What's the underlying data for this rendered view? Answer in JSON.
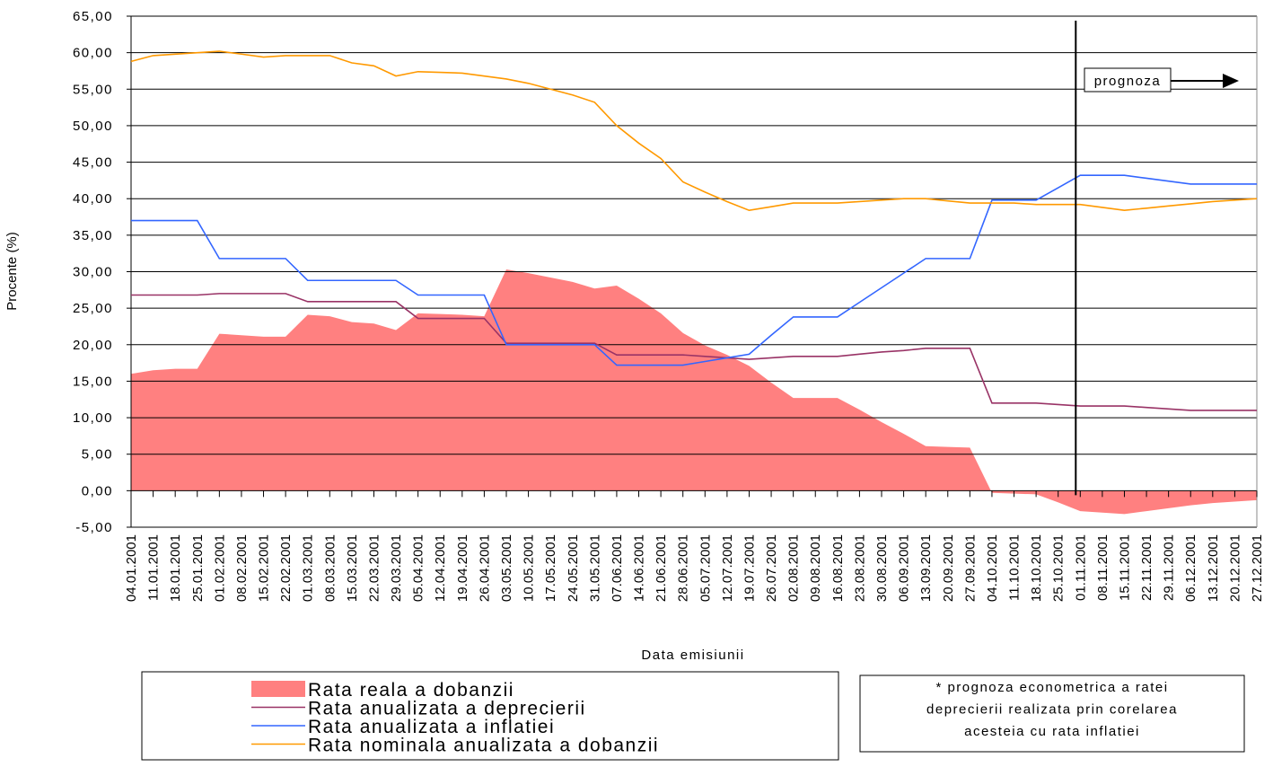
{
  "chart_data": {
    "type": "line",
    "y_label": "Procente (%)",
    "x_label": "Data emisiunii",
    "annotation": "prognoza",
    "note": [
      "* prognoza econometrica a ratei",
      "deprecierii realizata prin corelarea",
      "acesteia cu rata inflatiei"
    ],
    "categories": [
      "04.01.2001",
      "11.01.2001",
      "18.01.2001",
      "25.01.2001",
      "01.02.2001",
      "08.02.2001",
      "15.02.2001",
      "22.02.2001",
      "01.03.2001",
      "08.03.2001",
      "15.03.2001",
      "22.03.2001",
      "29.03.2001",
      "05.04.2001",
      "12.04.2001",
      "19.04.2001",
      "26.04.2001",
      "03.05.2001",
      "10.05.2001",
      "17.05.2001",
      "24.05.2001",
      "31.05.2001",
      "07.06.2001",
      "14.06.2001",
      "21.06.2001",
      "28.06.2001",
      "05.07.2001",
      "12.07.2001",
      "19.07.2001",
      "26.07.2001",
      "02.08.2001",
      "09.08.2001",
      "16.08.2001",
      "23.08.2001",
      "30.08.2001",
      "06.09.2001",
      "13.09.2001",
      "20.09.2001",
      "27.09.2001",
      "04.10.2001",
      "11.10.2001",
      "18.10.2001",
      "25.10.2001",
      "01.11.2001",
      "08.11.2001",
      "15.11.2001",
      "22.11.2001",
      "29.11.2001",
      "06.12.2001",
      "13.12.2001",
      "20.12.2001",
      "27.12.2001"
    ],
    "series": [
      {
        "name": "Rata reala a dobanzii",
        "type": "area",
        "color": "#ff8080",
        "values": [
          16.0,
          16.5,
          16.7,
          16.7,
          21.5,
          21.3,
          21.1,
          21.1,
          24.1,
          23.9,
          23.1,
          22.9,
          22.0,
          24.3,
          24.2,
          24.1,
          23.9,
          30.3,
          29.8,
          29.2,
          28.6,
          27.7,
          28.1,
          26.3,
          24.3,
          21.6,
          19.9,
          18.6,
          17.1,
          14.8,
          12.7,
          12.7,
          12.7,
          11.1,
          9.4,
          7.8,
          6.1,
          6.0,
          5.9,
          -0.3,
          -0.4,
          -0.5,
          -1.6,
          -2.8,
          -3.0,
          -3.2,
          -2.8,
          -2.4,
          -2.0,
          -1.7,
          -1.5,
          -1.3
        ]
      },
      {
        "name": "Rata anualizata a deprecierii",
        "type": "line",
        "color": "#993366",
        "values": [
          26.8,
          26.8,
          26.8,
          26.8,
          27.0,
          27.0,
          27.0,
          27.0,
          25.9,
          25.9,
          25.9,
          25.9,
          25.9,
          23.6,
          23.6,
          23.6,
          23.6,
          20.2,
          20.2,
          20.2,
          20.2,
          20.2,
          18.6,
          18.6,
          18.6,
          18.6,
          18.4,
          18.2,
          18.0,
          18.2,
          18.4,
          18.4,
          18.4,
          18.7,
          19.0,
          19.2,
          19.5,
          19.5,
          19.5,
          12.0,
          12.0,
          12.0,
          11.8,
          11.6,
          11.6,
          11.6,
          11.4,
          11.2,
          11.0,
          11.0,
          11.0,
          11.0
        ]
      },
      {
        "name": "Rata anualizata a inflatiei",
        "type": "line",
        "color": "#3366ff",
        "values": [
          37.0,
          37.0,
          37.0,
          37.0,
          31.8,
          31.8,
          31.8,
          31.8,
          28.8,
          28.8,
          28.8,
          28.8,
          28.8,
          26.8,
          26.8,
          26.8,
          26.8,
          20.0,
          20.0,
          20.0,
          20.0,
          20.0,
          17.2,
          17.2,
          17.2,
          17.2,
          17.7,
          18.2,
          18.7,
          21.3,
          23.8,
          23.8,
          23.8,
          25.8,
          27.8,
          29.8,
          31.8,
          31.8,
          31.8,
          39.8,
          39.8,
          39.8,
          41.5,
          43.2,
          43.2,
          43.2,
          42.8,
          42.4,
          42.0,
          42.0,
          42.0,
          42.0
        ]
      },
      {
        "name": "Rata nominala anualizata a dobanzii",
        "type": "line",
        "color": "#ff9900",
        "values": [
          58.8,
          59.6,
          59.8,
          60.0,
          60.2,
          59.8,
          59.4,
          59.6,
          59.6,
          59.6,
          58.6,
          58.2,
          56.8,
          57.4,
          57.3,
          57.2,
          56.8,
          56.4,
          55.8,
          55.0,
          54.2,
          53.2,
          50.0,
          47.6,
          45.5,
          42.3,
          40.9,
          39.6,
          38.4,
          38.9,
          39.4,
          39.4,
          39.4,
          39.6,
          39.8,
          40.0,
          40.0,
          39.7,
          39.4,
          39.4,
          39.4,
          39.2,
          39.2,
          39.2,
          38.8,
          38.4,
          38.7,
          39.0,
          39.3,
          39.6,
          39.8,
          40.0
        ]
      }
    ],
    "ylim": [
      -5,
      65
    ],
    "yticks": [
      {
        "value": -5,
        "label": "-5,00"
      },
      {
        "value": 0,
        "label": "0,00"
      },
      {
        "value": 5,
        "label": "5,00"
      },
      {
        "value": 10,
        "label": "10,00"
      },
      {
        "value": 15,
        "label": "15,00"
      },
      {
        "value": 20,
        "label": "20,00"
      },
      {
        "value": 25,
        "label": "25,00"
      },
      {
        "value": 30,
        "label": "30,00"
      },
      {
        "value": 35,
        "label": "35,00"
      },
      {
        "value": 40,
        "label": "40,00"
      },
      {
        "value": 45,
        "label": "45,00"
      },
      {
        "value": 50,
        "label": "50,00"
      },
      {
        "value": 55,
        "label": "55,00"
      },
      {
        "value": 60,
        "label": "60,00"
      },
      {
        "value": 65,
        "label": "65,00"
      }
    ],
    "grid": true
  }
}
